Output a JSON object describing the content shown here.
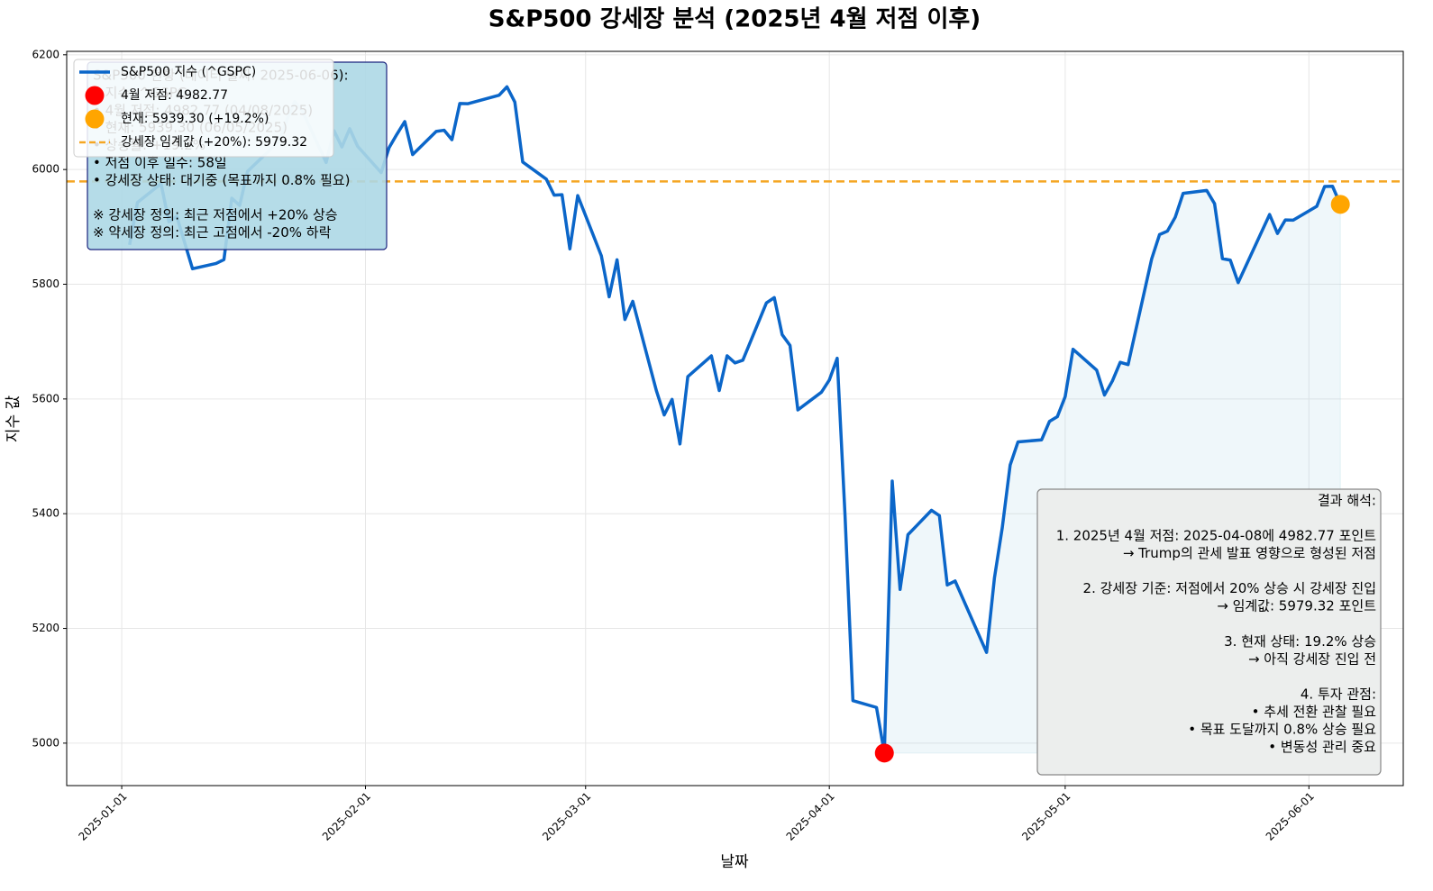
{
  "chart_data": {
    "type": "line",
    "title": "S&P500 강세장 분석 (2025년 4월 저점 이후)",
    "x_label": "날짜",
    "y_label": "지수 값",
    "x": [
      "2025-01-02",
      "2025-01-03",
      "2025-01-06",
      "2025-01-07",
      "2025-01-08",
      "2025-01-10",
      "2025-01-13",
      "2025-01-14",
      "2025-01-15",
      "2025-01-16",
      "2025-01-17",
      "2025-01-21",
      "2025-01-22",
      "2025-01-23",
      "2025-01-24",
      "2025-01-27",
      "2025-01-28",
      "2025-01-29",
      "2025-01-30",
      "2025-01-31",
      "2025-02-03",
      "2025-02-04",
      "2025-02-05",
      "2025-02-06",
      "2025-02-07",
      "2025-02-10",
      "2025-02-11",
      "2025-02-12",
      "2025-02-13",
      "2025-02-14",
      "2025-02-18",
      "2025-02-19",
      "2025-02-20",
      "2025-02-21",
      "2025-02-24",
      "2025-02-25",
      "2025-02-26",
      "2025-02-27",
      "2025-02-28",
      "2025-03-03",
      "2025-03-04",
      "2025-03-05",
      "2025-03-06",
      "2025-03-07",
      "2025-03-10",
      "2025-03-11",
      "2025-03-12",
      "2025-03-13",
      "2025-03-14",
      "2025-03-17",
      "2025-03-18",
      "2025-03-19",
      "2025-03-20",
      "2025-03-21",
      "2025-03-24",
      "2025-03-25",
      "2025-03-26",
      "2025-03-27",
      "2025-03-28",
      "2025-03-31",
      "2025-04-01",
      "2025-04-02",
      "2025-04-03",
      "2025-04-04",
      "2025-04-07",
      "2025-04-08",
      "2025-04-09",
      "2025-04-10",
      "2025-04-11",
      "2025-04-14",
      "2025-04-15",
      "2025-04-16",
      "2025-04-17",
      "2025-04-21",
      "2025-04-22",
      "2025-04-23",
      "2025-04-24",
      "2025-04-25",
      "2025-04-28",
      "2025-04-29",
      "2025-04-30",
      "2025-05-01",
      "2025-05-02",
      "2025-05-05",
      "2025-05-06",
      "2025-05-07",
      "2025-05-08",
      "2025-05-09",
      "2025-05-12",
      "2025-05-13",
      "2025-05-14",
      "2025-05-15",
      "2025-05-16",
      "2025-05-19",
      "2025-05-20",
      "2025-05-21",
      "2025-05-22",
      "2025-05-23",
      "2025-05-27",
      "2025-05-28",
      "2025-05-29",
      "2025-05-30",
      "2025-06-02",
      "2025-06-03",
      "2025-06-04",
      "2025-06-05"
    ],
    "series": [
      {
        "name": "S&P500 지수 (^GSPC)",
        "color": "#0b66c9",
        "values": [
          5868.55,
          5942.47,
          5975.38,
          5909.03,
          5918.25,
          5827.04,
          5836.22,
          5842.91,
          5949.91,
          5937.34,
          5996.66,
          6049.24,
          6086.37,
          6118.71,
          6101.24,
          6012.28,
          6067.7,
          6039.31,
          6071.17,
          6040.53,
          5994.57,
          6037.88,
          6061.48,
          6083.57,
          6025.99,
          6066.44,
          6068.5,
          6051.97,
          6115.07,
          6114.63,
          6129.58,
          6144.15,
          6117.52,
          6013.13,
          5983.25,
          5955.25,
          5956.06,
          5861.57,
          5954.5,
          5849.72,
          5778.15,
          5842.63,
          5738.52,
          5770.2,
          5614.56,
          5572.07,
          5599.3,
          5521.52,
          5638.94,
          5675.12,
          5614.66,
          5675.29,
          5662.89,
          5667.56,
          5767.57,
          5776.65,
          5712.2,
          5693.31,
          5580.94,
          5611.85,
          5633.07,
          5670.97,
          5396.52,
          5074.08,
          5062.25,
          4982.77,
          5456.9,
          5268.05,
          5363.36,
          5405.97,
          5396.63,
          5275.7,
          5282.7,
          5158.2,
          5287.76,
          5375.86,
          5484.77,
          5525.21,
          5528.75,
          5560.83,
          5569.06,
          5604.14,
          5686.67,
          5650.38,
          5606.91,
          5631.28,
          5663.94,
          5659.91,
          5844.19,
          5886.55,
          5892.58,
          5916.93,
          5958.38,
          5963.6,
          5940.46,
          5844.61,
          5842.01,
          5802.82,
          5921.54,
          5888.55,
          5912.17,
          5911.69,
          5935.94,
          5970.37,
          5970.81,
          5939.3
        ]
      }
    ],
    "markers": [
      {
        "name": "4월 저점: 4982.77",
        "color": "#ff0000",
        "x": "2025-04-08",
        "value": 4982.77
      },
      {
        "name": "현재: 5939.30 (+19.2%)",
        "color": "#ffa500",
        "x": "2025-06-05",
        "value": 5939.3
      }
    ],
    "threshold": {
      "name": "강세장 임계값 (+20%): 5979.32",
      "color": "#f5a623",
      "value": 5979.32
    },
    "fill_color": "#add8e6",
    "xlim": [
      "2024-12-25",
      "2025-06-13"
    ],
    "xticks": [
      "2025-01-01",
      "2025-02-01",
      "2025-03-01",
      "2025-04-01",
      "2025-05-01",
      "2025-06-01"
    ],
    "ylim": [
      4926,
      6206
    ],
    "yticks": [
      5000,
      5200,
      5400,
      5600,
      5800,
      6000,
      6200
    ],
    "grid": true,
    "legend_position": "upper-left",
    "status_box": {
      "lines": [
        "S&P500 현황 (데이터 날짜: 2025-06-06):",
        "• 지수: ^GSPC",
        "• 4월 저점: 4982.77 (04/08/2025)",
        "• 현재: 5939.30 (06/05/2025)",
        "• 상승률: +19.2%",
        "• 저점 이후 일수: 58일",
        "• 강세장 상태: 대기중 (목표까지 0.8% 필요)"
      ],
      "notes": [
        "※ 강세장 정의: 최근 저점에서 +20% 상승",
        "※ 약세장 정의: 최근 고점에서 -20% 하락"
      ]
    },
    "interpretation_box": {
      "title": "결과 해석:",
      "sections": [
        [
          "1. 2025년 4월 저점: 2025-04-08에 4982.77 포인트",
          "→ Trump의 관세 발표 영향으로 형성된 저점"
        ],
        [
          "2. 강세장 기준: 저점에서 20% 상승 시 강세장 진입",
          "→ 임계값: 5979.32 포인트"
        ],
        [
          "3. 현재 상태: 19.2% 상승",
          "→ 아직 강세장 진입 전"
        ],
        [
          "4. 투자 관점:",
          "• 추세 전환 관찰 필요",
          "• 목표 도달까지 0.8% 상승 필요",
          "• 변동성 관리 중요"
        ]
      ]
    }
  }
}
